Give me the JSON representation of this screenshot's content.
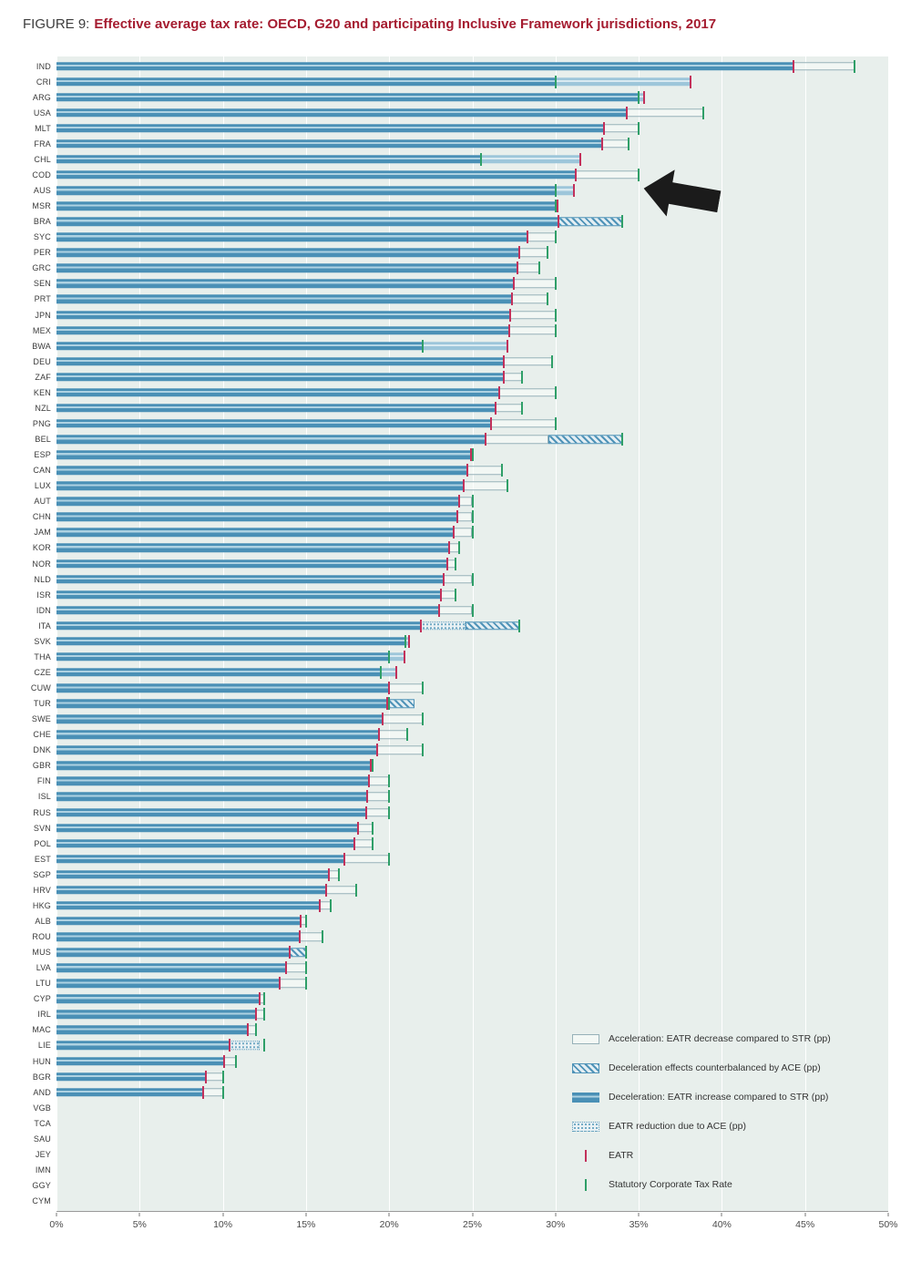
{
  "title": {
    "prefix": "FIGURE 9:",
    "text": "Effective average tax rate: OECD, G20 and participating Inclusive Framework jurisdictions, 2017"
  },
  "colors": {
    "title_red": "#a51c30",
    "plot_background": "#e8efec",
    "bar_blue": "#4a90b6",
    "bar_light_blue": "#9dc6da",
    "hatch_blue": "#4f93b8",
    "eatr_tick": "#c2315b",
    "str_tick": "#2f9f68",
    "arrow_black": "#1b1b1b"
  },
  "annotation_arrow": {
    "shape": "left-arrow",
    "color": "#1b1b1b",
    "points_at": "AUS"
  },
  "chart_data": {
    "type": "bar",
    "orientation": "horizontal",
    "title": "Effective average tax rate: OECD, G20 and participating Inclusive Framework jurisdictions, 2017",
    "xlabel": "",
    "ylabel": "",
    "xlim": [
      0,
      50
    ],
    "x_ticks": [
      "0%",
      "5%",
      "10%",
      "15%",
      "20%",
      "25%",
      "30%",
      "35%",
      "40%",
      "45%",
      "50%"
    ],
    "grid": true,
    "legend_position": "bottom-right",
    "legend": [
      {
        "swatch": "accel",
        "label": "Acceleration: EATR decrease compared to STR (pp)"
      },
      {
        "swatch": "hatch",
        "label": "Deceleration effects counterbalanced by ACE (pp)"
      },
      {
        "swatch": "solid",
        "label": "Deceleration: EATR increase compared to STR (pp)"
      },
      {
        "swatch": "dotted",
        "label": "EATR reduction due to ACE (pp)"
      },
      {
        "swatch": "line-eatr",
        "label": "EATR"
      },
      {
        "swatch": "line-str",
        "label": "Statutory Corporate Tax Rate"
      }
    ],
    "series_units": "percent",
    "countries": [
      {
        "code": "IND",
        "eatr": 44.3,
        "str": 48.0
      },
      {
        "code": "CRI",
        "eatr": 38.1,
        "str": 30.0
      },
      {
        "code": "ARG",
        "eatr": 35.3,
        "str": 35.0
      },
      {
        "code": "USA",
        "eatr": 34.3,
        "str": 38.9
      },
      {
        "code": "MLT",
        "eatr": 32.9,
        "str": 35.0
      },
      {
        "code": "FRA",
        "eatr": 32.8,
        "str": 34.4
      },
      {
        "code": "CHL",
        "eatr": 31.5,
        "str": 25.5
      },
      {
        "code": "COD",
        "eatr": 31.2,
        "str": 35.0
      },
      {
        "code": "AUS",
        "eatr": 31.1,
        "str": 30.0
      },
      {
        "code": "MSR",
        "eatr": 30.1,
        "str": 30.0
      },
      {
        "code": "BRA",
        "eatr": 30.2,
        "str": 34.0,
        "segments": [
          {
            "type": "solid",
            "from": 0,
            "to": 30.2
          },
          {
            "type": "hatch",
            "from": 30.2,
            "to": 34.0
          }
        ]
      },
      {
        "code": "SYC",
        "eatr": 28.3,
        "str": 30.0
      },
      {
        "code": "PER",
        "eatr": 27.8,
        "str": 29.5
      },
      {
        "code": "GRC",
        "eatr": 27.7,
        "str": 29.0
      },
      {
        "code": "SEN",
        "eatr": 27.5,
        "str": 30.0
      },
      {
        "code": "PRT",
        "eatr": 27.4,
        "str": 29.5
      },
      {
        "code": "JPN",
        "eatr": 27.3,
        "str": 30.0
      },
      {
        "code": "MEX",
        "eatr": 27.2,
        "str": 30.0
      },
      {
        "code": "BWA",
        "eatr": 27.1,
        "str": 22.0
      },
      {
        "code": "DEU",
        "eatr": 26.9,
        "str": 29.8
      },
      {
        "code": "ZAF",
        "eatr": 26.9,
        "str": 28.0
      },
      {
        "code": "KEN",
        "eatr": 26.6,
        "str": 30.0
      },
      {
        "code": "NZL",
        "eatr": 26.4,
        "str": 28.0
      },
      {
        "code": "PNG",
        "eatr": 26.1,
        "str": 30.0
      },
      {
        "code": "BEL",
        "eatr": 25.8,
        "str": 34.0,
        "segments": [
          {
            "type": "solid",
            "from": 0,
            "to": 25.8
          },
          {
            "type": "accel",
            "from": 25.8,
            "to": 29.6
          },
          {
            "type": "hatch",
            "from": 29.6,
            "to": 34.0
          }
        ]
      },
      {
        "code": "ESP",
        "eatr": 24.9,
        "str": 25.0
      },
      {
        "code": "CAN",
        "eatr": 24.7,
        "str": 26.8
      },
      {
        "code": "LUX",
        "eatr": 24.5,
        "str": 27.1
      },
      {
        "code": "AUT",
        "eatr": 24.2,
        "str": 25.0
      },
      {
        "code": "CHN",
        "eatr": 24.1,
        "str": 25.0
      },
      {
        "code": "JAM",
        "eatr": 23.9,
        "str": 25.0
      },
      {
        "code": "KOR",
        "eatr": 23.6,
        "str": 24.2
      },
      {
        "code": "NOR",
        "eatr": 23.5,
        "str": 24.0
      },
      {
        "code": "NLD",
        "eatr": 23.3,
        "str": 25.0
      },
      {
        "code": "ISR",
        "eatr": 23.1,
        "str": 24.0
      },
      {
        "code": "IDN",
        "eatr": 23.0,
        "str": 25.0
      },
      {
        "code": "ITA",
        "eatr": 21.9,
        "str": 27.8,
        "segments": [
          {
            "type": "solid",
            "from": 0,
            "to": 21.9
          },
          {
            "type": "dotted",
            "from": 21.9,
            "to": 24.6
          },
          {
            "type": "hatch",
            "from": 24.6,
            "to": 27.8
          }
        ]
      },
      {
        "code": "SVK",
        "eatr": 21.2,
        "str": 21.0
      },
      {
        "code": "THA",
        "eatr": 20.9,
        "str": 20.0
      },
      {
        "code": "CZE",
        "eatr": 20.4,
        "str": 19.5
      },
      {
        "code": "CUW",
        "eatr": 20.0,
        "str": 22.0
      },
      {
        "code": "TUR",
        "eatr": 19.9,
        "str": 20.0,
        "segments": [
          {
            "type": "solid",
            "from": 0,
            "to": 19.9
          },
          {
            "type": "hatch",
            "from": 19.9,
            "to": 21.5
          }
        ]
      },
      {
        "code": "SWE",
        "eatr": 19.6,
        "str": 22.0
      },
      {
        "code": "CHE",
        "eatr": 19.4,
        "str": 21.1
      },
      {
        "code": "DNK",
        "eatr": 19.3,
        "str": 22.0
      },
      {
        "code": "GBR",
        "eatr": 18.9,
        "str": 19.0
      },
      {
        "code": "FIN",
        "eatr": 18.8,
        "str": 20.0
      },
      {
        "code": "ISL",
        "eatr": 18.7,
        "str": 20.0
      },
      {
        "code": "RUS",
        "eatr": 18.6,
        "str": 20.0
      },
      {
        "code": "SVN",
        "eatr": 18.1,
        "str": 19.0
      },
      {
        "code": "POL",
        "eatr": 17.9,
        "str": 19.0
      },
      {
        "code": "EST",
        "eatr": 17.3,
        "str": 20.0
      },
      {
        "code": "SGP",
        "eatr": 16.4,
        "str": 17.0
      },
      {
        "code": "HRV",
        "eatr": 16.2,
        "str": 18.0
      },
      {
        "code": "HKG",
        "eatr": 15.8,
        "str": 16.5
      },
      {
        "code": "ALB",
        "eatr": 14.7,
        "str": 15.0
      },
      {
        "code": "ROU",
        "eatr": 14.6,
        "str": 16.0
      },
      {
        "code": "MUS",
        "eatr": 14.0,
        "str": 15.0,
        "segments": [
          {
            "type": "solid",
            "from": 0,
            "to": 14.0
          },
          {
            "type": "hatch",
            "from": 14.0,
            "to": 15.0
          }
        ]
      },
      {
        "code": "LVA",
        "eatr": 13.8,
        "str": 15.0
      },
      {
        "code": "LTU",
        "eatr": 13.4,
        "str": 15.0
      },
      {
        "code": "CYP",
        "eatr": 12.2,
        "str": 12.5
      },
      {
        "code": "IRL",
        "eatr": 12.0,
        "str": 12.5
      },
      {
        "code": "MAC",
        "eatr": 11.5,
        "str": 12.0
      },
      {
        "code": "LIE",
        "eatr": 10.4,
        "str": 12.5,
        "segments": [
          {
            "type": "solid",
            "from": 0,
            "to": 10.4
          },
          {
            "type": "dotted",
            "from": 10.4,
            "to": 12.2
          }
        ]
      },
      {
        "code": "HUN",
        "eatr": 10.1,
        "str": 10.8
      },
      {
        "code": "BGR",
        "eatr": 9.0,
        "str": 10.0
      },
      {
        "code": "AND",
        "eatr": 8.8,
        "str": 10.0
      },
      {
        "code": "VGB",
        "eatr": 0,
        "str": 0
      },
      {
        "code": "TCA",
        "eatr": 0,
        "str": 0
      },
      {
        "code": "SAU",
        "eatr": 0,
        "str": 0
      },
      {
        "code": "JEY",
        "eatr": 0,
        "str": 0
      },
      {
        "code": "IMN",
        "eatr": 0,
        "str": 0
      },
      {
        "code": "GGY",
        "eatr": 0,
        "str": 0
      },
      {
        "code": "CYM",
        "eatr": 0,
        "str": 0
      }
    ]
  }
}
